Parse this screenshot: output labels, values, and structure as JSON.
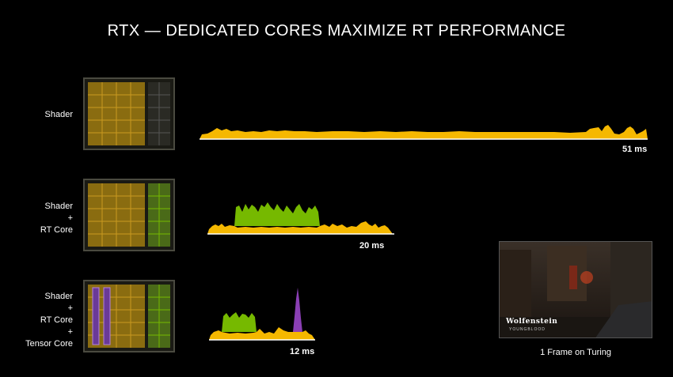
{
  "title": "RTX — DEDICATED CORES MAXIMIZE RT PERFORMANCE",
  "rows": [
    {
      "label_lines": [
        "Shader"
      ],
      "time": "51 ms"
    },
    {
      "label_lines": [
        "Shader",
        "+",
        "RT Core"
      ],
      "time": "20 ms"
    },
    {
      "label_lines": [
        "Shader",
        "+",
        "RT Core",
        "+",
        "Tensor Core"
      ],
      "time": "12 ms"
    }
  ],
  "screenshot": {
    "logo": "Wolfenstein",
    "logo_sub": "YOUNGBLOOD",
    "caption": "1 Frame on Turing"
  },
  "colors": {
    "shader": "#f5b800",
    "rt_core": "#76b900",
    "tensor_core": "#8a3fb4"
  },
  "chart_data": [
    {
      "type": "area",
      "title": "Shader",
      "series": [
        {
          "name": "Shader",
          "values": [
            1,
            1,
            1,
            1,
            1,
            1,
            1,
            1,
            1,
            1
          ]
        }
      ],
      "total_ms": 51
    },
    {
      "type": "area",
      "title": "Shader + RT Core",
      "series": [
        {
          "name": "Shader",
          "values": [
            1,
            1,
            1,
            1,
            1,
            1,
            1,
            1,
            1,
            1
          ]
        },
        {
          "name": "RT Core",
          "values": [
            0,
            0,
            1,
            1,
            1,
            1,
            1,
            1,
            0,
            0
          ]
        }
      ],
      "total_ms": 20
    },
    {
      "type": "area",
      "title": "Shader + RT Core + Tensor Core",
      "series": [
        {
          "name": "Shader",
          "values": [
            1,
            1,
            1,
            1,
            1,
            1,
            1,
            1,
            1,
            1
          ]
        },
        {
          "name": "RT Core",
          "values": [
            0,
            1,
            1,
            1,
            0,
            0,
            0,
            0,
            0,
            0
          ]
        },
        {
          "name": "Tensor Core",
          "values": [
            0,
            0,
            0,
            0,
            0,
            0,
            0,
            1,
            0,
            0
          ]
        }
      ],
      "total_ms": 12
    }
  ]
}
